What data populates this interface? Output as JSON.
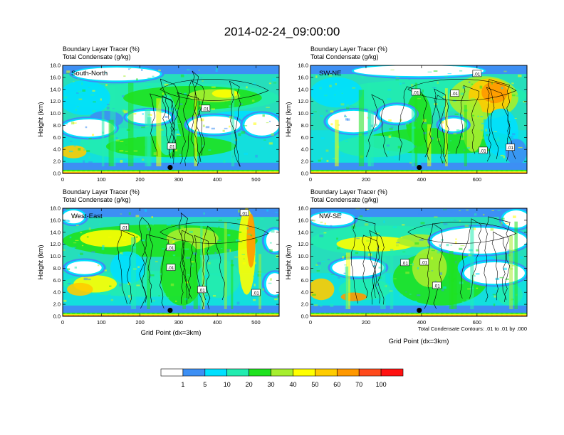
{
  "title": "2014-02-24_09:00:00",
  "subtitle_line1": "Boundary Layer Tracer   (%)",
  "subtitle_line2": "Total Condensate   (g/kg)",
  "x_axis_label": "Grid Point (dx=3km)",
  "y_axis_label": "Height (km)",
  "contour_note": "Total Condensate Contours: .01 to .01 by .000",
  "colorbar": {
    "levels": [
      "1",
      "5",
      "10",
      "20",
      "30",
      "40",
      "50",
      "60",
      "70",
      "100"
    ],
    "colors": [
      "#ffffff",
      "#3d8ff4",
      "#00e0ff",
      "#22ecb0",
      "#1fe21f",
      "#a6ee2e",
      "#ffff00",
      "#ffcc00",
      "#ff9800",
      "#ff4a1c",
      "#ff1111"
    ]
  },
  "chart_data": [
    {
      "type": "heatmap",
      "panel_label": "South-North",
      "subtitle_line1": "Boundary Layer Tracer   (%)",
      "subtitle_line2": "Total Condensate   (g/kg)",
      "xlim": [
        0,
        560
      ],
      "ylim": [
        0,
        18
      ],
      "x_ticks": [
        "0",
        "100",
        "200",
        "300",
        "400",
        "500"
      ],
      "y_ticks": [
        "0.0",
        "2.0",
        "4.0",
        "6.0",
        "8.0",
        "10.0",
        "12.0",
        "14.0",
        "16.0",
        "18.0"
      ],
      "xlabel": "",
      "ylabel": "Height (km)",
      "contour_labels": [
        {
          "text": ".01",
          "x": 370,
          "y": 10.8
        },
        {
          "text": ".01",
          "x": 282,
          "y": 4.5
        }
      ],
      "marker": {
        "x": 278,
        "y": 1.0
      }
    },
    {
      "type": "heatmap",
      "panel_label": "SW-NE",
      "subtitle_line1": "Boundary Layer Tracer   (%)",
      "subtitle_line2": "Total Condensate   (g/kg)",
      "xlim": [
        0,
        780
      ],
      "ylim": [
        0,
        18
      ],
      "x_ticks": [
        "0",
        "200",
        "400",
        "600"
      ],
      "y_ticks": [
        "0.0",
        "2.0",
        "4.0",
        "6.0",
        "8.0",
        "10.0",
        "12.0",
        "14.0",
        "16.0",
        "18.0"
      ],
      "xlabel": "",
      "ylabel": "Height (km)",
      "contour_labels": [
        {
          "text": ".01",
          "x": 380,
          "y": 13.5
        },
        {
          "text": ".01",
          "x": 520,
          "y": 13.3
        },
        {
          "text": ".01",
          "x": 600,
          "y": 16.6
        },
        {
          "text": ".01",
          "x": 622,
          "y": 3.8
        },
        {
          "text": ".01",
          "x": 720,
          "y": 4.3
        }
      ],
      "marker": {
        "x": 392,
        "y": 1.0
      }
    },
    {
      "type": "heatmap",
      "panel_label": "West-East",
      "subtitle_line1": "Boundary Layer Tracer   (%)",
      "subtitle_line2": "Total Condensate   (g/kg)",
      "xlim": [
        0,
        560
      ],
      "ylim": [
        0,
        18
      ],
      "x_ticks": [
        "0",
        "100",
        "200",
        "300",
        "400",
        "500"
      ],
      "y_ticks": [
        "0.0",
        "2.0",
        "4.0",
        "6.0",
        "8.0",
        "10.0",
        "12.0",
        "14.0",
        "16.0",
        "18.0"
      ],
      "xlabel": "Grid Point (dx=3km)",
      "ylabel": "Height (km)",
      "contour_labels": [
        {
          "text": ".01",
          "x": 160,
          "y": 14.8
        },
        {
          "text": ".01",
          "x": 280,
          "y": 11.4
        },
        {
          "text": ".01",
          "x": 280,
          "y": 8.1
        },
        {
          "text": ".01",
          "x": 360,
          "y": 4.4
        },
        {
          "text": ".01",
          "x": 470,
          "y": 17.2
        },
        {
          "text": ".01",
          "x": 500,
          "y": 3.9
        }
      ],
      "marker": {
        "x": 278,
        "y": 1.0
      }
    },
    {
      "type": "heatmap",
      "panel_label": "NW-SE",
      "subtitle_line1": "Boundary Layer Tracer   (%)",
      "subtitle_line2": "Total Condensate   (g/kg)",
      "xlim": [
        0,
        780
      ],
      "ylim": [
        0,
        18
      ],
      "x_ticks": [
        "0",
        "200",
        "400",
        "600"
      ],
      "y_ticks": [
        "0.0",
        "2.0",
        "4.0",
        "6.0",
        "8.0",
        "10.0",
        "12.0",
        "14.0",
        "16.0",
        "18.0"
      ],
      "xlabel": "Grid Point (dx=3km)",
      "ylabel": "Height (km)",
      "contour_labels": [
        {
          "text": ".01",
          "x": 340,
          "y": 8.9
        },
        {
          "text": ".01",
          "x": 410,
          "y": 9.0
        },
        {
          "text": ".01",
          "x": 455,
          "y": 5.1
        }
      ],
      "marker": {
        "x": 392,
        "y": 1.0
      }
    }
  ]
}
